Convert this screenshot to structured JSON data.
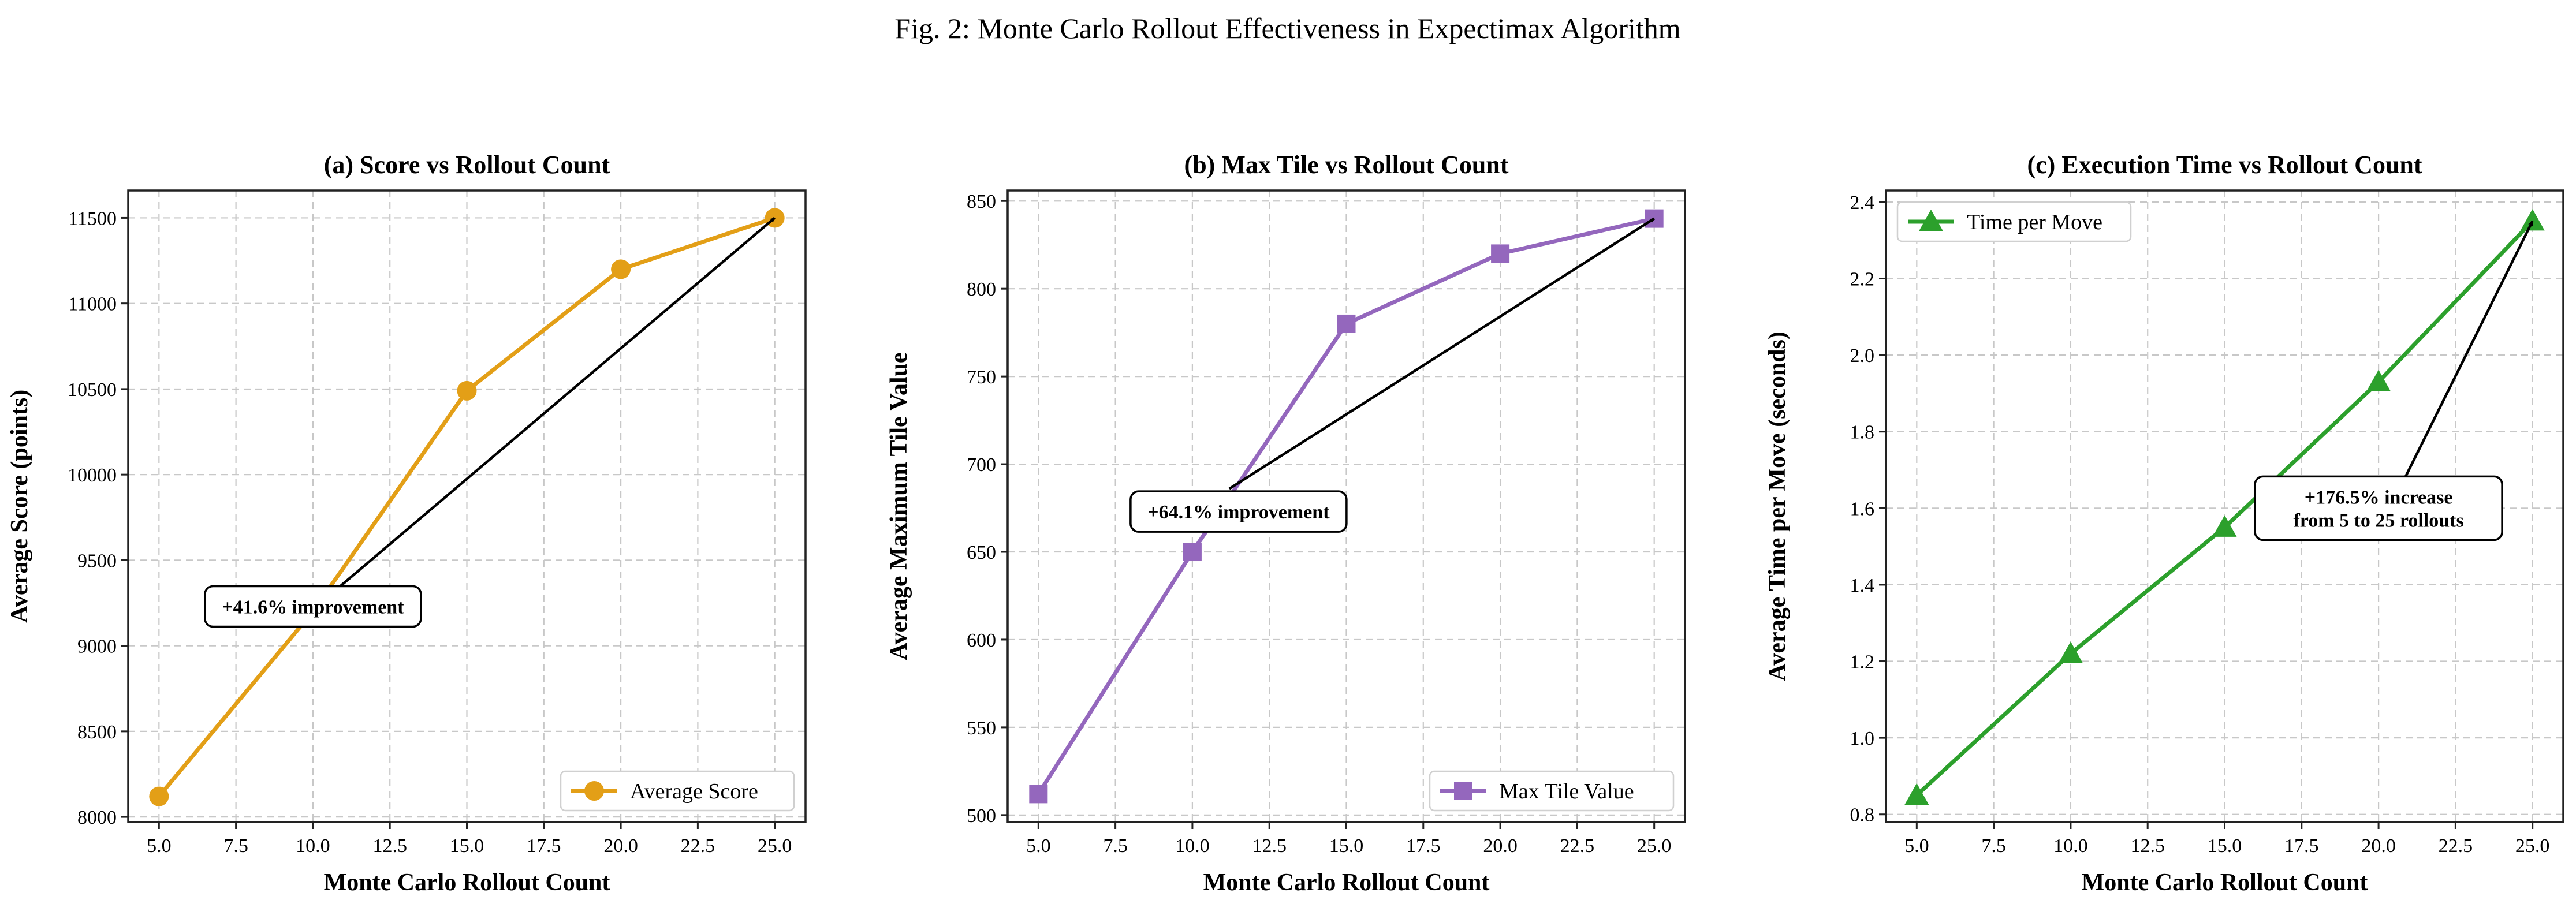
{
  "figure_title": "Fig. 2: Monte Carlo Rollout Effectiveness in Expectimax Algorithm",
  "chart_data": [
    {
      "type": "line",
      "title": "(a) Score vs Rollout Count",
      "xlabel": "Monte Carlo Rollout Count",
      "ylabel": "Average Score (points)",
      "x": [
        5.0,
        10.0,
        15.0,
        20.0,
        25.0
      ],
      "xticks": [
        5.0,
        7.5,
        10.0,
        12.5,
        15.0,
        17.5,
        20.0,
        22.5,
        25.0
      ],
      "xtick_labels": [
        "5.0",
        "7.5",
        "10.0",
        "12.5",
        "15.0",
        "17.5",
        "20.0",
        "22.5",
        "25.0"
      ],
      "xlim": [
        4.0,
        26.0
      ],
      "yticks": [
        8000,
        8500,
        9000,
        9500,
        10000,
        10500,
        11000,
        11500
      ],
      "ytick_labels": [
        "8000",
        "8500",
        "9000",
        "9500",
        "10000",
        "10500",
        "11000",
        "11500"
      ],
      "ylim": [
        7970,
        11660
      ],
      "grid": true,
      "series": [
        {
          "name": "Average Score",
          "values": [
            8120,
            9200,
            10490,
            11200,
            11500
          ],
          "color": "#e39f17",
          "marker": "circle"
        }
      ],
      "legend": {
        "position": "lower-right"
      },
      "annotation": {
        "lines": [
          "+41.6% improvement"
        ],
        "text_x": 10.0,
        "text_y": 9230,
        "arrow_to_x": 25.0,
        "arrow_to_y": 11500,
        "arrow_from_x": 10.9,
        "arrow_from_y": 9350
      }
    },
    {
      "type": "line",
      "title": "(b) Max Tile vs Rollout Count",
      "xlabel": "Monte Carlo Rollout Count",
      "ylabel": "Average Maximum Tile Value",
      "x": [
        5.0,
        10.0,
        15.0,
        20.0,
        25.0
      ],
      "xticks": [
        5.0,
        7.5,
        10.0,
        12.5,
        15.0,
        17.5,
        20.0,
        22.5,
        25.0
      ],
      "xtick_labels": [
        "5.0",
        "7.5",
        "10.0",
        "12.5",
        "15.0",
        "17.5",
        "20.0",
        "22.5",
        "25.0"
      ],
      "xlim": [
        4.0,
        26.0
      ],
      "yticks": [
        500,
        550,
        600,
        650,
        700,
        750,
        800,
        850
      ],
      "ytick_labels": [
        "500",
        "550",
        "600",
        "650",
        "700",
        "750",
        "800",
        "850"
      ],
      "ylim": [
        496,
        856
      ],
      "grid": true,
      "series": [
        {
          "name": "Max Tile Value",
          "values": [
            512,
            650,
            780,
            820,
            840
          ],
          "color": "#9467bd",
          "marker": "square"
        }
      ],
      "legend": {
        "position": "lower-right"
      },
      "annotation": {
        "lines": [
          "+64.1% improvement"
        ],
        "text_x": 11.5,
        "text_y": 673,
        "arrow_to_x": 25.0,
        "arrow_to_y": 840,
        "arrow_from_x": 11.2,
        "arrow_from_y": 686
      }
    },
    {
      "type": "line",
      "title": "(c) Execution Time vs Rollout Count",
      "xlabel": "Monte Carlo Rollout Count",
      "ylabel": "Average Time per Move (seconds)",
      "x": [
        5.0,
        10.0,
        15.0,
        20.0,
        25.0
      ],
      "xticks": [
        5.0,
        7.5,
        10.0,
        12.5,
        15.0,
        17.5,
        20.0,
        22.5,
        25.0
      ],
      "xtick_labels": [
        "5.0",
        "7.5",
        "10.0",
        "12.5",
        "15.0",
        "17.5",
        "20.0",
        "22.5",
        "25.0"
      ],
      "xlim": [
        4.0,
        26.0
      ],
      "yticks": [
        0.8,
        1.0,
        1.2,
        1.4,
        1.6,
        1.8,
        2.0,
        2.2,
        2.4
      ],
      "ytick_labels": [
        "0.8",
        "1.0",
        "1.2",
        "1.4",
        "1.6",
        "1.8",
        "2.0",
        "2.2",
        "2.4"
      ],
      "ylim": [
        0.78,
        2.43
      ],
      "grid": true,
      "series": [
        {
          "name": "Time per Move",
          "values": [
            0.85,
            1.22,
            1.55,
            1.93,
            2.35
          ],
          "color": "#2ca02c",
          "marker": "triangle"
        }
      ],
      "legend": {
        "position": "upper-left"
      },
      "annotation": {
        "lines": [
          "+176.5% increase",
          "from 5 to 25 rollouts"
        ],
        "text_x": 20.0,
        "text_y": 1.6,
        "arrow_to_x": 25.0,
        "arrow_to_y": 2.35,
        "arrow_from_x": 20.8,
        "arrow_from_y": 1.67
      }
    }
  ]
}
